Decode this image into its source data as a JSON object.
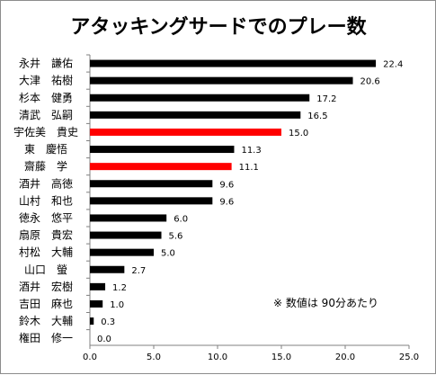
{
  "chart_data": {
    "type": "bar",
    "orientation": "horizontal",
    "title": "アタッキングサードでのプレー数",
    "categories": [
      "永井　謙佑",
      "大津　祐樹",
      "杉本　健勇",
      "清武　弘嗣",
      "宇佐美　貴史",
      "東　慶悟",
      "齋藤　学",
      "酒井　高徳",
      "山村　和也",
      "徳永　悠平",
      "扇原　貴宏",
      "村松　大輔",
      "山口　螢",
      "酒井　宏樹",
      "吉田　麻也",
      "鈴木　大輔",
      "権田　修一"
    ],
    "values": [
      22.4,
      20.6,
      17.2,
      16.5,
      15.0,
      11.3,
      11.1,
      9.6,
      9.6,
      6.0,
      5.6,
      5.0,
      2.7,
      1.2,
      1.0,
      0.3,
      0.0
    ],
    "value_labels": [
      "22.4",
      "20.6",
      "17.2",
      "16.5",
      "15.0",
      "11.3",
      "11.1",
      "9.6",
      "9.6",
      "6.0",
      "5.6",
      "5.0",
      "2.7",
      "1.2",
      "1.0",
      "0.3",
      "0.0"
    ],
    "highlighted": [
      false,
      false,
      false,
      false,
      true,
      false,
      true,
      false,
      false,
      false,
      false,
      false,
      false,
      false,
      false,
      false,
      false
    ],
    "xlim": [
      0,
      25
    ],
    "xticks": [
      "0.0",
      "5.0",
      "10.0",
      "15.0",
      "20.0",
      "25.0"
    ],
    "xlabel": "",
    "ylabel": "",
    "annotation": "※ 数値は 90分あたり",
    "grid": false,
    "legend": "none",
    "colors": {
      "bar": "#000000",
      "highlight": "#ff0000",
      "axis": "#808080"
    }
  }
}
